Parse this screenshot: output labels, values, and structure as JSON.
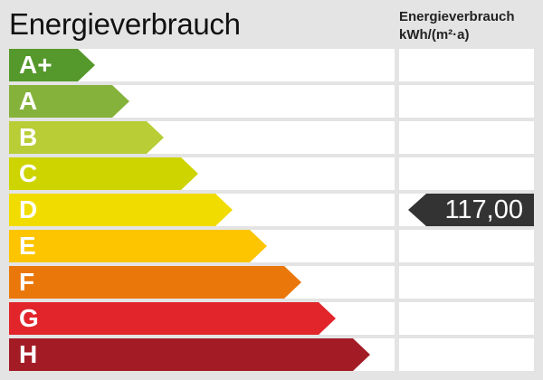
{
  "title": "Energieverbrauch",
  "column_header": {
    "line1": "Energieverbrauch",
    "line2": "kWh/(m²·a)"
  },
  "classes": [
    {
      "label": "A+",
      "color": "#55982c"
    },
    {
      "label": "A",
      "color": "#85b23a"
    },
    {
      "label": "B",
      "color": "#b8cd36"
    },
    {
      "label": "C",
      "color": "#cdd400"
    },
    {
      "label": "D",
      "color": "#f1dc00"
    },
    {
      "label": "E",
      "color": "#fcc500"
    },
    {
      "label": "F",
      "color": "#ea770a"
    },
    {
      "label": "G",
      "color": "#e1252a"
    },
    {
      "label": "H",
      "color": "#a31c25"
    }
  ],
  "indicator": {
    "value": "117,00",
    "class": "D",
    "color": "#333333"
  }
}
